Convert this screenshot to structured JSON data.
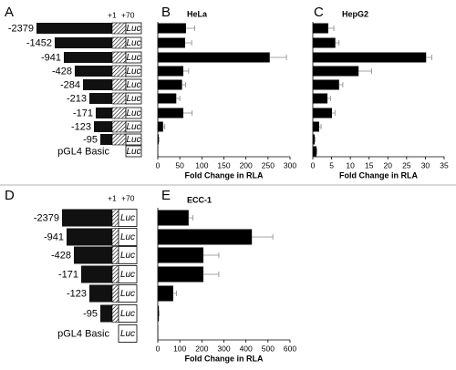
{
  "panel_labels": [
    "A",
    "B",
    "C",
    "D",
    "E"
  ],
  "construct_markers": [
    "+1",
    "+70"
  ],
  "reporter": "Luc",
  "chart_data": [
    {
      "type": "bar",
      "orientation": "horizontal",
      "title": "HeLa",
      "x_label": "Fold Change in RLA",
      "categories": [
        "-2379",
        "-1452",
        "-941",
        "-428",
        "-284",
        "-213",
        "-171",
        "-123",
        "-95",
        "pGL4 Basic"
      ],
      "values": [
        64,
        62,
        254,
        58,
        55,
        42,
        58,
        12,
        2,
        1
      ],
      "errors": [
        20,
        15,
        38,
        12,
        8,
        8,
        20,
        4,
        1,
        0
      ],
      "color": "#000000",
      "xlim": [
        0,
        300
      ],
      "xticks": [
        0,
        50,
        100,
        150,
        200,
        250,
        300
      ]
    },
    {
      "type": "bar",
      "orientation": "horizontal",
      "title": "HepG2",
      "x_label": "Fold Change in RLA",
      "values": [
        4.1,
        6,
        30.2,
        12.2,
        7,
        3.9,
        5.1,
        1.7,
        0.5,
        1
      ],
      "errors": [
        1.5,
        1,
        1.5,
        3.5,
        1,
        0.8,
        0.8,
        0.5,
        0.1,
        0.1
      ],
      "color": "#000000",
      "xlim": [
        0,
        35
      ],
      "xticks": [
        0,
        5,
        10,
        15,
        20,
        25,
        30,
        35
      ]
    },
    {
      "type": "bar",
      "orientation": "horizontal",
      "title": "ECC-1",
      "x_label": "Fold Change in RLA",
      "categories": [
        "-2379",
        "-941",
        "-428",
        "-171",
        "-123",
        "-95",
        "pGL4 Basic"
      ],
      "values": [
        140,
        427,
        207,
        207,
        70,
        5,
        2
      ],
      "errors": [
        20,
        95,
        70,
        70,
        15,
        2,
        0
      ],
      "color": "#000000",
      "xlim": [
        0,
        600
      ],
      "xticks": [
        0,
        100,
        200,
        300,
        400,
        500,
        600
      ]
    }
  ]
}
